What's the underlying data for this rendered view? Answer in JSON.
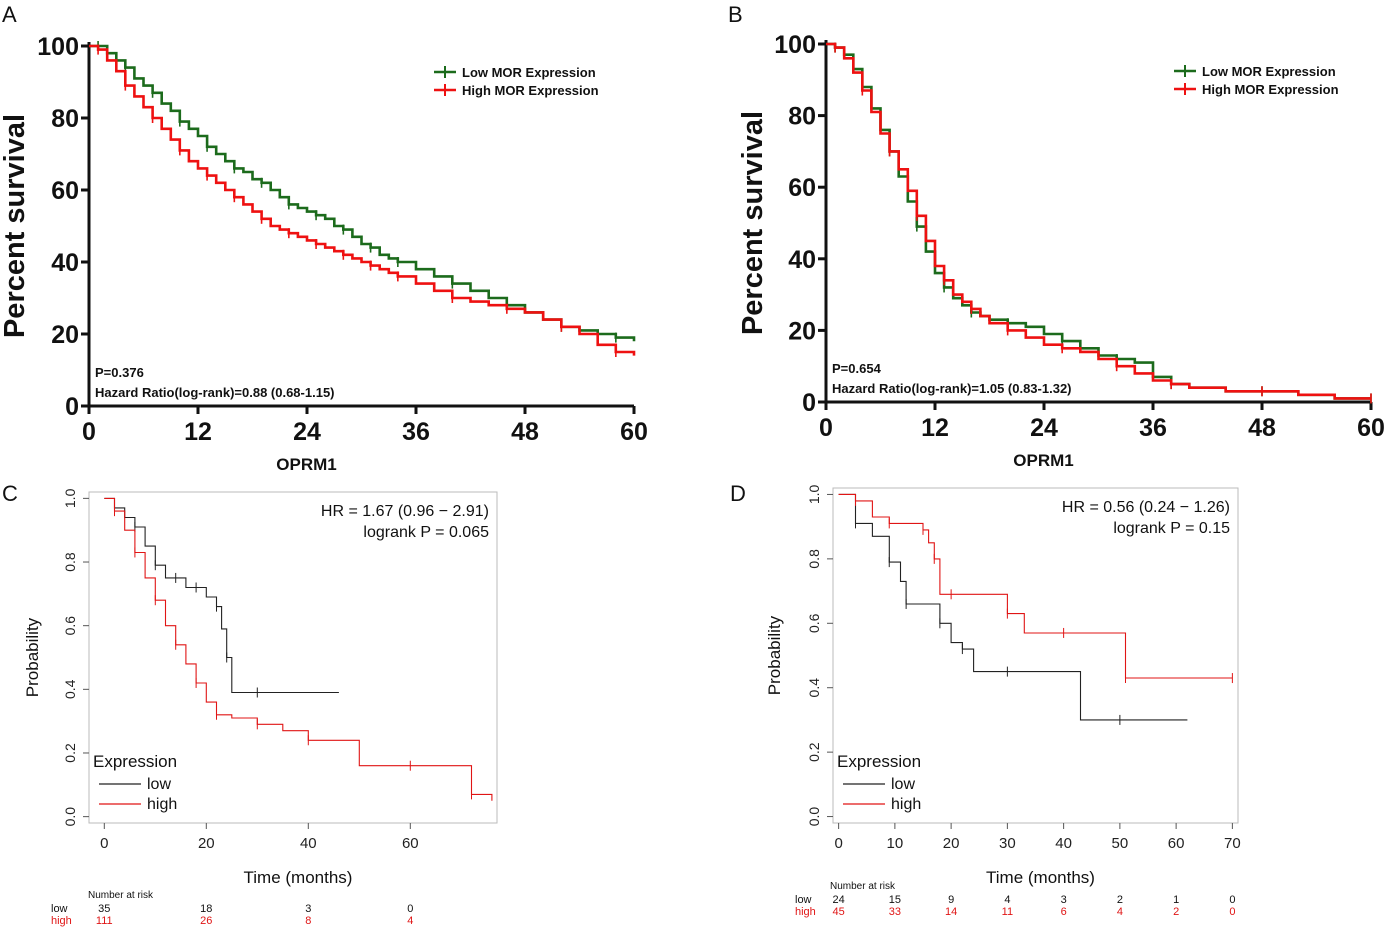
{
  "colors": {
    "green": "#1c6b1c",
    "red_ab": "#ee1111",
    "black": "#222222",
    "red_cd": "#e01515",
    "box": "#bbbbbb"
  },
  "chart_data": [
    {
      "panel": "A",
      "type": "line",
      "xlabel": "OPRM1",
      "ylabel": "Percent survival",
      "xlim": [
        0,
        60
      ],
      "ylim": [
        0,
        100
      ],
      "xticks": [
        "0",
        "12",
        "24",
        "36",
        "48",
        "60"
      ],
      "yticks": [
        "0",
        "20",
        "40",
        "60",
        "80",
        "100"
      ],
      "legend": [
        "Low MOR Expression",
        "High MOR Expression"
      ],
      "annotation_p": "P=0.376",
      "annotation_hr": "Hazard Ratio(log-rank)=0.88 (0.68-1.15)",
      "series": [
        {
          "name": "Low MOR Expression",
          "x": [
            0,
            1,
            2,
            3,
            4,
            5,
            6,
            7,
            8,
            9,
            10,
            11,
            12,
            13,
            14,
            15,
            16,
            17,
            18,
            19,
            20,
            21,
            22,
            23,
            24,
            25,
            26,
            27,
            28,
            29,
            30,
            31,
            32,
            33,
            34,
            36,
            38,
            40,
            42,
            44,
            46,
            48,
            50,
            52,
            54,
            56,
            58,
            60
          ],
          "y": [
            100,
            100,
            98,
            96,
            94,
            91,
            89,
            87,
            84,
            82,
            79,
            77,
            75,
            72,
            70,
            68,
            66,
            65,
            63,
            62,
            60,
            58,
            56,
            55,
            54,
            53,
            52,
            50,
            49,
            47,
            45,
            44,
            42,
            41,
            40,
            38,
            36,
            34,
            32,
            30,
            28,
            26,
            24,
            22,
            21,
            20,
            19,
            18
          ]
        },
        {
          "name": "High MOR Expression",
          "x": [
            0,
            1,
            2,
            3,
            4,
            5,
            6,
            7,
            8,
            9,
            10,
            11,
            12,
            13,
            14,
            15,
            16,
            17,
            18,
            19,
            20,
            21,
            22,
            23,
            24,
            25,
            26,
            27,
            28,
            29,
            30,
            31,
            32,
            33,
            34,
            36,
            38,
            40,
            42,
            44,
            46,
            48,
            50,
            52,
            54,
            56,
            58,
            60
          ],
          "y": [
            100,
            99,
            96,
            93,
            89,
            86,
            83,
            80,
            77,
            74,
            71,
            68,
            66,
            64,
            62,
            60,
            58,
            56,
            54,
            52,
            50,
            49,
            48,
            47,
            46,
            45,
            44,
            43,
            42,
            41,
            40,
            39,
            38,
            37,
            36,
            34,
            32,
            30,
            29,
            28,
            27,
            26,
            24,
            22,
            20,
            17,
            15,
            14
          ]
        }
      ]
    },
    {
      "panel": "B",
      "type": "line",
      "xlabel": "OPRM1",
      "ylabel": "Percent survival",
      "xlim": [
        0,
        60
      ],
      "ylim": [
        0,
        100
      ],
      "xticks": [
        "0",
        "12",
        "24",
        "36",
        "48",
        "60"
      ],
      "yticks": [
        "0",
        "20",
        "40",
        "60",
        "80",
        "100"
      ],
      "legend": [
        "Low MOR Expression",
        "High MOR Expression"
      ],
      "annotation_p": "P=0.654",
      "annotation_hr": "Hazard Ratio(log-rank)=1.05 (0.83-1.32)",
      "series": [
        {
          "name": "Low MOR Expression",
          "x": [
            0,
            1,
            2,
            3,
            4,
            5,
            6,
            7,
            8,
            9,
            10,
            11,
            12,
            13,
            14,
            15,
            16,
            17,
            18,
            20,
            22,
            24,
            26,
            28,
            30,
            32,
            34,
            36,
            38,
            40,
            44,
            48,
            52,
            56,
            60
          ],
          "y": [
            100,
            99,
            97,
            93,
            88,
            82,
            76,
            70,
            63,
            56,
            49,
            42,
            36,
            32,
            29,
            27,
            25,
            24,
            23,
            22,
            21,
            19,
            17,
            15,
            13,
            12,
            11,
            7,
            5,
            4,
            3,
            3,
            2,
            1,
            1
          ]
        },
        {
          "name": "High MOR Expression",
          "x": [
            0,
            1,
            2,
            3,
            4,
            5,
            6,
            7,
            8,
            9,
            10,
            11,
            12,
            13,
            14,
            15,
            16,
            17,
            18,
            20,
            22,
            24,
            26,
            28,
            30,
            32,
            34,
            36,
            38,
            40,
            44,
            48,
            52,
            56,
            60
          ],
          "y": [
            100,
            99,
            96,
            92,
            87,
            81,
            75,
            70,
            65,
            59,
            52,
            45,
            38,
            34,
            30,
            28,
            26,
            24,
            22,
            20,
            18,
            16,
            15,
            14,
            12,
            10,
            8,
            6,
            5,
            4,
            3,
            3,
            2,
            1,
            1
          ]
        }
      ]
    },
    {
      "panel": "C",
      "type": "line",
      "xlabel": "Time (months)",
      "ylabel": "Probability",
      "xlim": [
        -3,
        77
      ],
      "ylim": [
        -0.02,
        1.02
      ],
      "xticks": [
        "0",
        "20",
        "40",
        "60"
      ],
      "yticks": [
        "0.0",
        "0.2",
        "0.4",
        "0.6",
        "0.8",
        "1.0"
      ],
      "legend_title": "Expression",
      "legend": [
        "low",
        "high"
      ],
      "annotation_hr": "HR = 1.67 (0.96 − 2.91)",
      "annotation_p": "logrank P = 0.065",
      "risk_table": {
        "title": "Number at risk",
        "times": [
          0,
          20,
          40,
          60
        ],
        "rows": [
          {
            "name": "low",
            "values": [
              "35",
              "18",
              "3",
              "0"
            ]
          },
          {
            "name": "high",
            "values": [
              "111",
              "26",
              "8",
              "4"
            ]
          }
        ]
      },
      "series": [
        {
          "name": "low",
          "x": [
            0,
            2,
            4,
            6,
            8,
            10,
            12,
            14,
            16,
            18,
            20,
            22,
            23,
            24,
            25,
            30,
            46
          ],
          "y": [
            1.0,
            0.97,
            0.94,
            0.91,
            0.85,
            0.79,
            0.75,
            0.75,
            0.72,
            0.72,
            0.69,
            0.66,
            0.59,
            0.5,
            0.39,
            0.39,
            0.39
          ]
        },
        {
          "name": "high",
          "x": [
            0,
            2,
            4,
            6,
            8,
            10,
            12,
            14,
            16,
            18,
            20,
            22,
            25,
            30,
            35,
            40,
            50,
            60,
            67,
            72,
            76
          ],
          "y": [
            1.0,
            0.96,
            0.9,
            0.83,
            0.75,
            0.68,
            0.6,
            0.54,
            0.48,
            0.42,
            0.36,
            0.32,
            0.31,
            0.29,
            0.27,
            0.24,
            0.16,
            0.16,
            0.16,
            0.07,
            0.05
          ]
        }
      ]
    },
    {
      "panel": "D",
      "type": "line",
      "xlabel": "Time (months)",
      "ylabel": "Probability",
      "xlim": [
        -1,
        71
      ],
      "ylim": [
        -0.02,
        1.02
      ],
      "xticks": [
        "0",
        "10",
        "20",
        "30",
        "40",
        "50",
        "60",
        "70"
      ],
      "yticks": [
        "0.0",
        "0.2",
        "0.4",
        "0.6",
        "0.8",
        "1.0"
      ],
      "legend_title": "Expression",
      "legend": [
        "low",
        "high"
      ],
      "annotation_hr": "HR = 0.56 (0.24 − 1.26)",
      "annotation_p": "logrank P = 0.15",
      "risk_table": {
        "title": "Number at risk",
        "times": [
          0,
          10,
          20,
          30,
          40,
          50,
          60,
          70
        ],
        "rows": [
          {
            "name": "low",
            "values": [
              "24",
              "15",
              "9",
              "4",
              "3",
              "2",
              "1",
              "0"
            ]
          },
          {
            "name": "high",
            "values": [
              "45",
              "33",
              "14",
              "11",
              "6",
              "4",
              "2",
              "0"
            ]
          }
        ]
      },
      "series": [
        {
          "name": "low",
          "x": [
            0,
            3,
            6,
            9,
            11,
            12,
            15,
            18,
            20,
            22,
            24,
            30,
            43,
            50,
            62
          ],
          "y": [
            1.0,
            0.91,
            0.87,
            0.79,
            0.73,
            0.66,
            0.66,
            0.6,
            0.54,
            0.52,
            0.45,
            0.45,
            0.3,
            0.3,
            0.3
          ]
        },
        {
          "name": "high",
          "x": [
            0,
            3,
            6,
            9,
            12,
            15,
            16,
            17,
            18,
            20,
            25,
            30,
            33,
            40,
            50,
            51,
            60,
            70
          ],
          "y": [
            1.0,
            0.98,
            0.93,
            0.91,
            0.91,
            0.89,
            0.85,
            0.8,
            0.69,
            0.69,
            0.69,
            0.63,
            0.57,
            0.57,
            0.57,
            0.43,
            0.43,
            0.43
          ]
        }
      ]
    }
  ]
}
